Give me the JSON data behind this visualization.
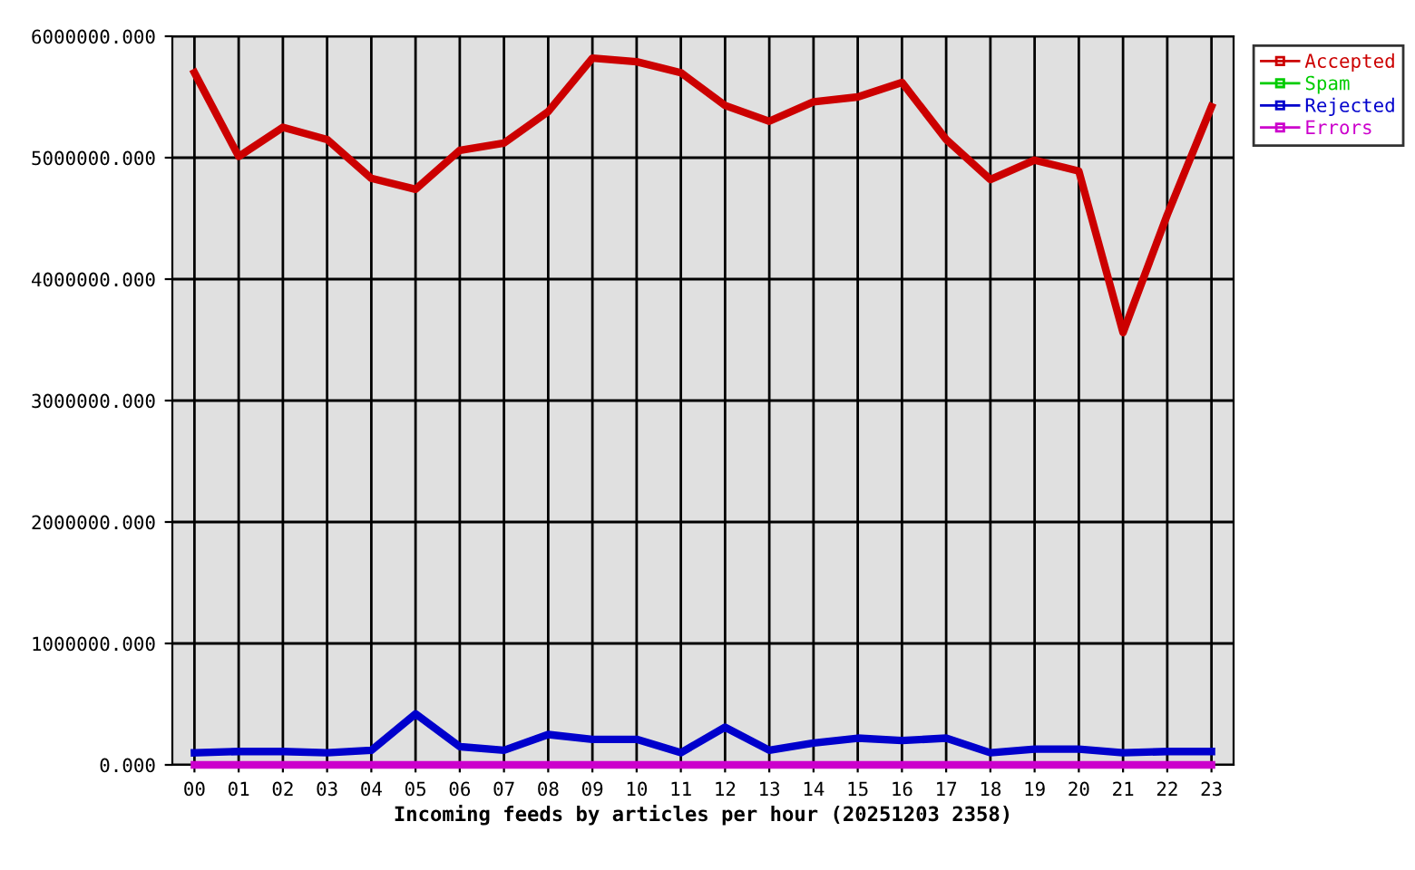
{
  "chart_data": {
    "type": "line",
    "xlabel": "Incoming feeds by articles per hour (20251203 2358)",
    "categories": [
      "00",
      "01",
      "02",
      "03",
      "04",
      "05",
      "06",
      "07",
      "08",
      "09",
      "10",
      "11",
      "12",
      "13",
      "14",
      "15",
      "16",
      "17",
      "18",
      "19",
      "20",
      "21",
      "22",
      "23"
    ],
    "series": [
      {
        "name": "Accepted",
        "color": "#cc0000",
        "values": [
          5700000,
          5010000,
          5250000,
          5150000,
          4830000,
          4740000,
          5060000,
          5120000,
          5380000,
          5820000,
          5790000,
          5700000,
          5430000,
          5300000,
          5460000,
          5500000,
          5620000,
          5150000,
          4820000,
          4980000,
          4890000,
          3560000,
          4530000,
          5420000
        ]
      },
      {
        "name": "Spam",
        "color": "#00cc00",
        "values": [
          null,
          null,
          null,
          null,
          null,
          null,
          null,
          null,
          null,
          null,
          null,
          null,
          null,
          null,
          null,
          null,
          null,
          null,
          null,
          null,
          null,
          null,
          null,
          null
        ]
      },
      {
        "name": "Rejected",
        "color": "#0000cc",
        "values": [
          100000,
          110000,
          110000,
          100000,
          120000,
          420000,
          150000,
          120000,
          250000,
          210000,
          210000,
          100000,
          310000,
          120000,
          180000,
          220000,
          200000,
          220000,
          100000,
          130000,
          130000,
          100000,
          110000,
          110000
        ]
      },
      {
        "name": "Errors",
        "color": "#cc00cc",
        "values": [
          0,
          0,
          0,
          0,
          0,
          0,
          0,
          0,
          0,
          0,
          0,
          0,
          0,
          0,
          0,
          0,
          0,
          0,
          0,
          0,
          0,
          0,
          0,
          0
        ]
      }
    ],
    "ylim": [
      0,
      6000000
    ],
    "yticks": [
      {
        "value": 0,
        "label": "0.000"
      },
      {
        "value": 1000000,
        "label": "1000000.000"
      },
      {
        "value": 2000000,
        "label": "2000000.000"
      },
      {
        "value": 3000000,
        "label": "3000000.000"
      },
      {
        "value": 4000000,
        "label": "4000000.000"
      },
      {
        "value": 5000000,
        "label": "5000000.000"
      },
      {
        "value": 6000000,
        "label": "6000000.000"
      }
    ],
    "grid": true,
    "legend": "top right",
    "line_style": "solid"
  }
}
